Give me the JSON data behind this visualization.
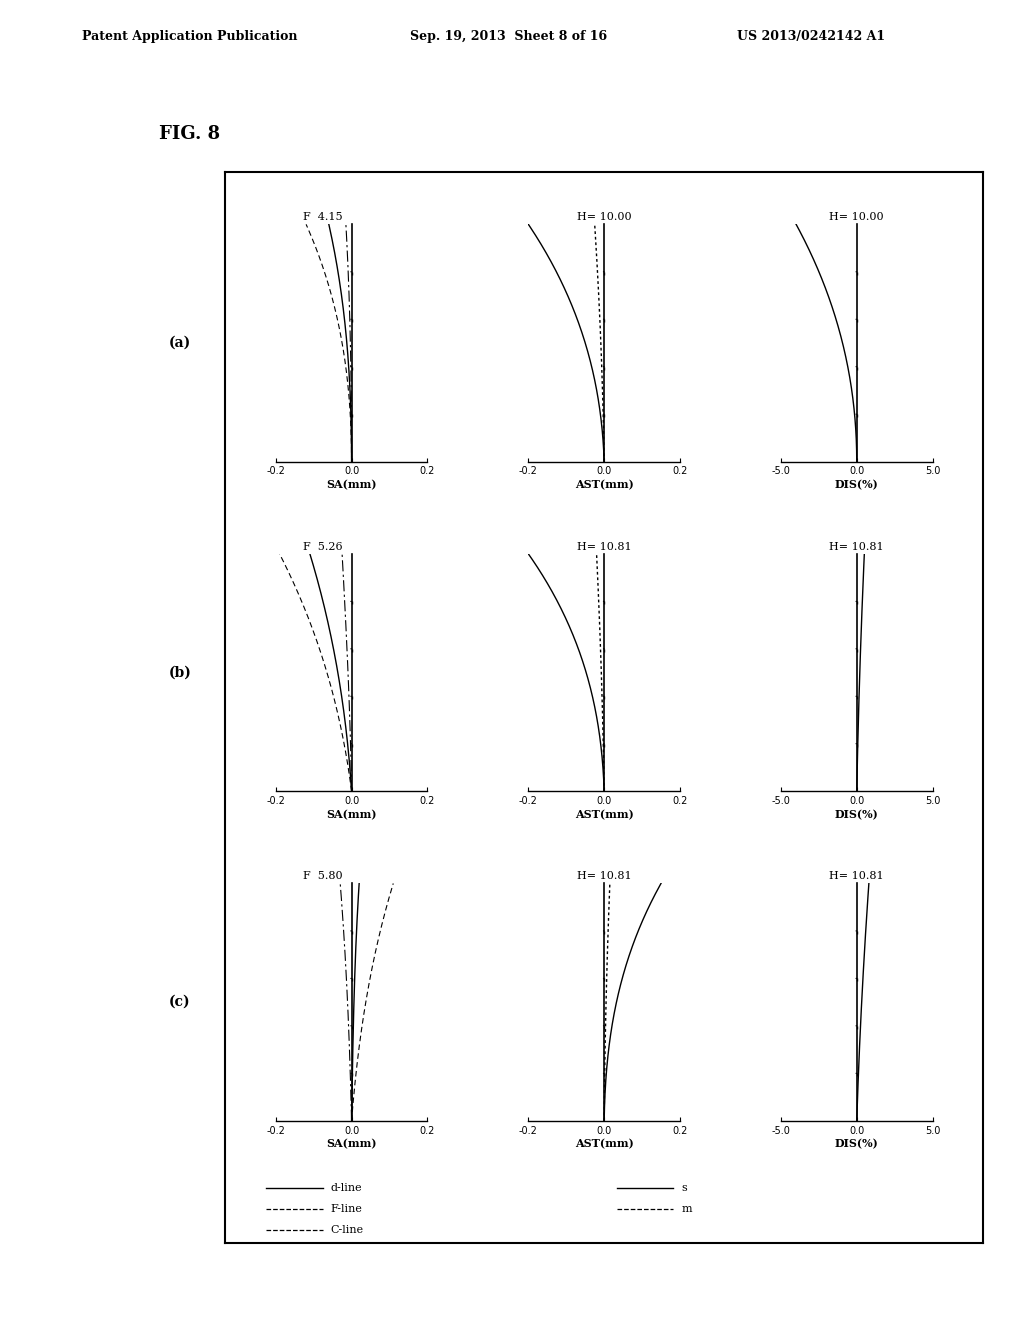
{
  "fig_label": "FIG. 8",
  "header_left": "Patent Application Publication",
  "header_center": "Sep. 19, 2013  Sheet 8 of 16",
  "header_right": "US 2013/0242142 A1",
  "rows": [
    {
      "label": "(a)",
      "sa_title": "F  4.15",
      "ast_title": "H= 10.00",
      "dis_title": "H= 10.00"
    },
    {
      "label": "(b)",
      "sa_title": "F  5.26",
      "ast_title": "H= 10.81",
      "dis_title": "H= 10.81"
    },
    {
      "label": "(c)",
      "sa_title": "F  5.80",
      "ast_title": "H= 10.81",
      "dis_title": "H= 10.81"
    }
  ],
  "background_color": "#ffffff",
  "tick_label_fontsize": 7,
  "axis_label_fontsize": 8,
  "title_fontsize": 8,
  "row_label_fontsize": 10,
  "legend_fontsize": 8
}
